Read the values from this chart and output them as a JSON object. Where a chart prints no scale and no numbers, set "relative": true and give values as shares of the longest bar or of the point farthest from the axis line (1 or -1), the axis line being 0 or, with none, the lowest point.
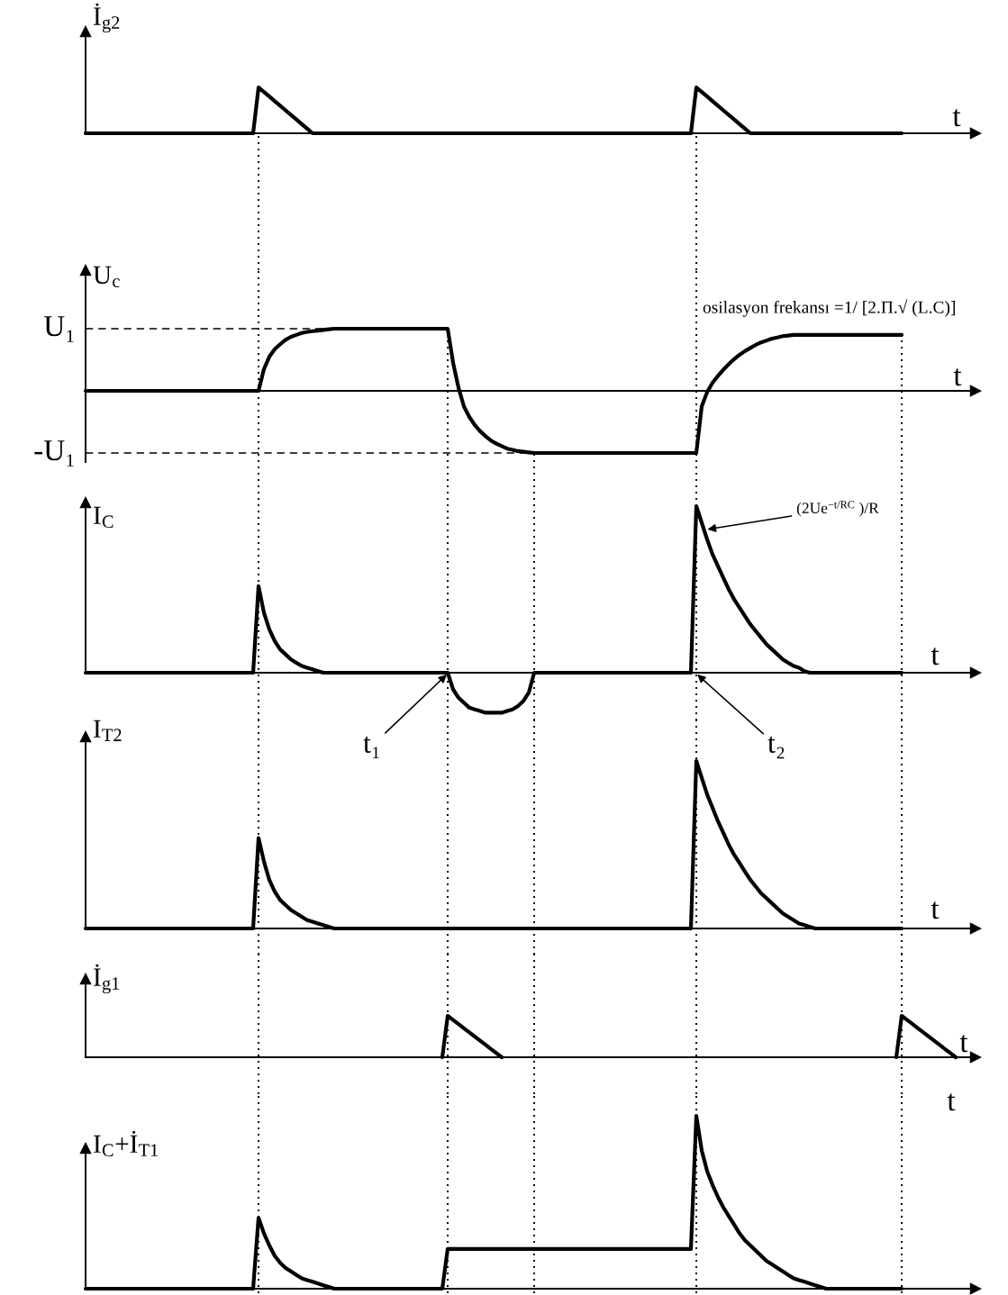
{
  "chart_data": [
    {
      "type": "line",
      "ylabel": "İ$_{g2}$",
      "xlabel": "t",
      "relative": true,
      "color": "#000000",
      "categories": [
        null,
        null,
        null,
        null,
        null,
        null,
        null,
        null,
        null,
        null,
        null,
        null,
        null,
        null,
        null,
        null,
        null,
        null,
        null,
        null,
        null,
        null,
        null,
        null,
        null,
        null,
        null,
        null,
        null,
        null,
        null,
        null,
        null,
        null,
        null,
        null,
        null,
        null,
        null,
        null,
        null,
        null,
        null,
        null,
        null,
        null,
        null,
        null,
        null,
        null,
        null,
        null,
        null,
        null,
        null,
        null,
        null,
        null,
        null,
        null,
        null,
        null,
        null,
        null,
        null,
        null,
        null,
        null,
        null,
        null,
        null,
        null,
        null,
        null,
        null,
        null,
        null,
        null,
        null,
        null,
        null,
        null,
        null,
        null,
        null,
        null,
        null,
        null,
        null,
        null,
        null,
        null,
        null,
        null,
        null,
        null,
        null,
        null,
        null,
        null,
        null,
        null,
        null,
        null,
        null,
        null,
        null,
        null,
        null,
        null,
        null,
        null,
        null,
        null,
        null,
        null,
        null,
        null,
        null,
        null,
        null,
        null,
        null,
        null,
        null,
        null,
        null,
        null,
        null,
        null,
        null,
        null,
        null,
        null,
        null,
        null,
        null,
        null,
        null,
        null,
        null,
        null,
        null,
        null,
        null,
        null,
        null,
        null,
        null,
        null,
        null,
        null,
        null,
        null,
        null,
        null,
        null,
        null,
        null,
        null,
        null,
        null
      ],
      "values": [
        0,
        0,
        0,
        0,
        0,
        0,
        0,
        0,
        0,
        0,
        0,
        0,
        0,
        0,
        0,
        0,
        0,
        0,
        0,
        0,
        0,
        0,
        0,
        0,
        0,
        0,
        0,
        0,
        0,
        0,
        0,
        0,
        1,
        0.9,
        0.8,
        0.7,
        0.6,
        0.5,
        0.4,
        0.3,
        0.2,
        0.1,
        0,
        0,
        0,
        0,
        0,
        0,
        0,
        0,
        0,
        0,
        0,
        0,
        0,
        0,
        0,
        0,
        0,
        0,
        0,
        0,
        0,
        0,
        0,
        0,
        0,
        0,
        0,
        0,
        0,
        0,
        0,
        0,
        0,
        0,
        0,
        0,
        0,
        0,
        0,
        0,
        0,
        0,
        0,
        0,
        0,
        0,
        0,
        0,
        0,
        0,
        0,
        0,
        0,
        0,
        0,
        0,
        0,
        0,
        0,
        0,
        0,
        0,
        0,
        0,
        0,
        0,
        0,
        0,
        0,
        0,
        0,
        1,
        0.9,
        0.8,
        0.7,
        0.6,
        0.5,
        0.4,
        0.3,
        0.2,
        0.1,
        0,
        0,
        0,
        0,
        0,
        0,
        0,
        0,
        0,
        0,
        0,
        0,
        0,
        0,
        0,
        0,
        0,
        0,
        0,
        0,
        0,
        0,
        0,
        0,
        0,
        0,
        0,
        0,
        0,
        null,
        null,
        null,
        null,
        null,
        null,
        null,
        null,
        null,
        null
      ]
    },
    {
      "type": "line",
      "ylabel": "U$_{c}$",
      "xlabel": "t",
      "relative": true,
      "color": "#000000",
      "annotations": [
        "osilasyon frekansı =1/ [2.Π.√ (L.C)]"
      ],
      "ref_lines": [
        {
          "axis": "y",
          "value": 1,
          "label": "U₁",
          "line_style": "dashed"
        },
        {
          "axis": "y",
          "value": -1,
          "label": "-U₁",
          "line_style": "dashed"
        }
      ],
      "categories": [
        null,
        null,
        null,
        null,
        null,
        null,
        null,
        null,
        null,
        null,
        null,
        null,
        null,
        null,
        null,
        null,
        null,
        null,
        null,
        null,
        null,
        null,
        null,
        null,
        null,
        null,
        null,
        null,
        null,
        null,
        null,
        null,
        null,
        null,
        null,
        null,
        null,
        null,
        null,
        null,
        null,
        null,
        null,
        null,
        null,
        null,
        null,
        null,
        null,
        null,
        null,
        null,
        null,
        null,
        null,
        null,
        null,
        null,
        null,
        null,
        null,
        null,
        null,
        null,
        null,
        null,
        null,
        null,
        null,
        null,
        null,
        null,
        null,
        null,
        null,
        null,
        null,
        null,
        null,
        null,
        null,
        null,
        null,
        null,
        null,
        null,
        null,
        null,
        null,
        null,
        null,
        null,
        null,
        null,
        null,
        null,
        null,
        null,
        null,
        null,
        null,
        null,
        null,
        null,
        null,
        null,
        null,
        null,
        null,
        null,
        null,
        null,
        null,
        null,
        null,
        null,
        null,
        null,
        null,
        null,
        null,
        null,
        null,
        null,
        null,
        null,
        null,
        null,
        null,
        null,
        null,
        null,
        null,
        null,
        null,
        null,
        null,
        null,
        null,
        null,
        null,
        null,
        null,
        null,
        null,
        null,
        null,
        null,
        null,
        null,
        null,
        null,
        null,
        null,
        null,
        null,
        null,
        null,
        null,
        null,
        null,
        null
      ],
      "values": [
        0,
        0,
        0,
        0,
        0,
        0,
        0,
        0,
        0,
        0,
        0,
        0,
        0,
        0,
        0,
        0,
        0,
        0,
        0,
        0,
        0,
        0,
        0,
        0,
        0,
        0,
        0,
        0,
        0,
        0,
        0,
        0,
        0,
        0.35,
        0.55,
        0.67,
        0.75,
        0.82,
        0.87,
        0.9,
        0.93,
        0.95,
        0.96,
        0.97,
        0.98,
        0.99,
        1,
        1,
        1,
        1,
        1,
        1,
        1,
        1,
        1,
        1,
        1,
        1,
        1,
        1,
        1,
        1,
        1,
        1,
        1,
        1,
        1,
        1,
        0.45,
        0.05,
        -0.25,
        -0.42,
        -0.55,
        -0.65,
        -0.73,
        -0.8,
        -0.85,
        -0.89,
        -0.93,
        -0.95,
        -0.97,
        -0.98,
        -0.99,
        -1,
        -1,
        -1,
        -1,
        -1,
        -1,
        -1,
        -1,
        -1,
        -1,
        -1,
        -1,
        -1,
        -1,
        -1,
        -1,
        -1,
        -1,
        -1,
        -1,
        -1,
        -1,
        -1,
        -1,
        -1,
        -1,
        -1,
        -1,
        -1,
        -1,
        -1,
        -0.25,
        -0.02,
        0.13,
        0.24,
        0.34,
        0.43,
        0.51,
        0.58,
        0.64,
        0.69,
        0.74,
        0.78,
        0.81,
        0.84,
        0.86,
        0.88,
        0.89,
        0.9,
        0.9,
        0.9,
        0.9,
        0.9,
        0.9,
        0.9,
        0.9,
        0.9,
        0.9,
        0.9,
        0.9,
        0.9,
        0.9,
        0.9,
        0.9,
        0.9,
        0.9,
        0.9,
        0.9,
        0.9,
        null,
        null,
        null,
        null,
        null,
        null,
        null,
        null,
        null,
        null
      ]
    },
    {
      "type": "line",
      "ylabel": "I$_{C}$",
      "xlabel": "t",
      "relative": true,
      "color": "#000000",
      "annotations": [
        "(2Ue$^{−t/RC}$ )/R",
        "t₁",
        "t₂"
      ],
      "categories": [
        null,
        null,
        null,
        null,
        null,
        null,
        null,
        null,
        null,
        null,
        null,
        null,
        null,
        null,
        null,
        null,
        null,
        null,
        null,
        null,
        null,
        null,
        null,
        null,
        null,
        null,
        null,
        null,
        null,
        null,
        null,
        null,
        null,
        null,
        null,
        null,
        null,
        null,
        null,
        null,
        null,
        null,
        null,
        null,
        null,
        null,
        null,
        null,
        null,
        null,
        null,
        null,
        null,
        null,
        null,
        null,
        null,
        null,
        null,
        null,
        null,
        null,
        null,
        null,
        null,
        null,
        null,
        null,
        null,
        null,
        null,
        null,
        null,
        null,
        null,
        null,
        null,
        null,
        null,
        null,
        null,
        null,
        null,
        null,
        null,
        null,
        null,
        null,
        null,
        null,
        null,
        null,
        null,
        null,
        null,
        null,
        null,
        null,
        null,
        null,
        null,
        null,
        null,
        null,
        null,
        null,
        null,
        null,
        null,
        null,
        null,
        null,
        null,
        null,
        null,
        null,
        null,
        null,
        null,
        null,
        null,
        null,
        null,
        null,
        null,
        null,
        null,
        null,
        null,
        null,
        null,
        null,
        null,
        null,
        null,
        null,
        null,
        null,
        null,
        null,
        null,
        null,
        null,
        null,
        null,
        null,
        null,
        null,
        null,
        null,
        null,
        null,
        null,
        null,
        null,
        null,
        null,
        null,
        null,
        null,
        null,
        null
      ],
      "values": [
        0,
        0,
        0,
        0,
        0,
        0,
        0,
        0,
        0,
        0,
        0,
        0,
        0,
        0,
        0,
        0,
        0,
        0,
        0,
        0,
        0,
        0,
        0,
        0,
        0,
        0,
        0,
        0,
        0,
        0,
        0,
        0,
        0.52,
        0.36,
        0.26,
        0.19,
        0.14,
        0.11,
        0.08,
        0.06,
        0.04,
        0.03,
        0.02,
        0.01,
        0,
        0,
        0,
        0,
        0,
        0,
        0,
        0,
        0,
        0,
        0,
        0,
        0,
        0,
        0,
        0,
        0,
        0,
        0,
        0,
        0,
        0,
        0,
        0,
        -0.1,
        -0.15,
        -0.18,
        -0.21,
        -0.22,
        -0.23,
        -0.24,
        -0.24,
        -0.24,
        -0.24,
        -0.23,
        -0.22,
        -0.2,
        -0.17,
        -0.12,
        0,
        0,
        0,
        0,
        0,
        0,
        0,
        0,
        0,
        0,
        0,
        0,
        0,
        0,
        0,
        0,
        0,
        0,
        0,
        0,
        0,
        0,
        0,
        0,
        0,
        0,
        0,
        0,
        0,
        0,
        1,
        0.9,
        0.8,
        0.71,
        0.64,
        0.57,
        0.5,
        0.44,
        0.39,
        0.34,
        0.29,
        0.25,
        0.21,
        0.17,
        0.14,
        0.11,
        0.08,
        0.06,
        0.04,
        0.03,
        0.01,
        0,
        0,
        0,
        0,
        0,
        0,
        0,
        0,
        0,
        0,
        0,
        0,
        0,
        0,
        0,
        0,
        0,
        0,
        null,
        null,
        null,
        null,
        null,
        null,
        null,
        null,
        null,
        null
      ]
    },
    {
      "type": "line",
      "ylabel": "I$_{T2}$",
      "xlabel": "t",
      "relative": true,
      "color": "#000000",
      "categories": [
        null,
        null,
        null,
        null,
        null,
        null,
        null,
        null,
        null,
        null,
        null,
        null,
        null,
        null,
        null,
        null,
        null,
        null,
        null,
        null,
        null,
        null,
        null,
        null,
        null,
        null,
        null,
        null,
        null,
        null,
        null,
        null,
        null,
        null,
        null,
        null,
        null,
        null,
        null,
        null,
        null,
        null,
        null,
        null,
        null,
        null,
        null,
        null,
        null,
        null,
        null,
        null,
        null,
        null,
        null,
        null,
        null,
        null,
        null,
        null,
        null,
        null,
        null,
        null,
        null,
        null,
        null,
        null,
        null,
        null,
        null,
        null,
        null,
        null,
        null,
        null,
        null,
        null,
        null,
        null,
        null,
        null,
        null,
        null,
        null,
        null,
        null,
        null,
        null,
        null,
        null,
        null,
        null,
        null,
        null,
        null,
        null,
        null,
        null,
        null,
        null,
        null,
        null,
        null,
        null,
        null,
        null,
        null,
        null,
        null,
        null,
        null,
        null,
        null,
        null,
        null,
        null,
        null,
        null,
        null,
        null,
        null,
        null,
        null,
        null,
        null,
        null,
        null,
        null,
        null,
        null,
        null,
        null,
        null,
        null,
        null,
        null,
        null,
        null,
        null,
        null,
        null,
        null,
        null,
        null,
        null,
        null,
        null,
        null,
        null,
        null,
        null,
        null,
        null,
        null,
        null,
        null,
        null,
        null,
        null,
        null,
        null
      ],
      "values": [
        0,
        0,
        0,
        0,
        0,
        0,
        0,
        0,
        0,
        0,
        0,
        0,
        0,
        0,
        0,
        0,
        0,
        0,
        0,
        0,
        0,
        0,
        0,
        0,
        0,
        0,
        0,
        0,
        0,
        0,
        0,
        0,
        0.54,
        0.4,
        0.29,
        0.22,
        0.17,
        0.14,
        0.11,
        0.09,
        0.07,
        0.05,
        0.04,
        0.03,
        0.02,
        0.01,
        0,
        0,
        0,
        0,
        0,
        0,
        0,
        0,
        0,
        0,
        0,
        0,
        0,
        0,
        0,
        0,
        0,
        0,
        0,
        0,
        0,
        0,
        0,
        0,
        0,
        0,
        0,
        0,
        0,
        0,
        0,
        0,
        0,
        0,
        0,
        0,
        0,
        0,
        0,
        0,
        0,
        0,
        0,
        0,
        0,
        0,
        0,
        0,
        0,
        0,
        0,
        0,
        0,
        0,
        0,
        0,
        0,
        0,
        0,
        0,
        0,
        0,
        0,
        0,
        0,
        0,
        0,
        1,
        0.9,
        0.8,
        0.72,
        0.64,
        0.57,
        0.5,
        0.44,
        0.39,
        0.34,
        0.29,
        0.25,
        0.21,
        0.18,
        0.15,
        0.12,
        0.09,
        0.07,
        0.05,
        0.03,
        0.02,
        0.01,
        0,
        0,
        0,
        0,
        0,
        0,
        0,
        0,
        0,
        0,
        0,
        0,
        0,
        0,
        0,
        0,
        0,
        null,
        null,
        null,
        null,
        null,
        null,
        null,
        null,
        null,
        null
      ]
    },
    {
      "type": "line",
      "ylabel": "İ$_{g1}$",
      "xlabel": "t",
      "relative": true,
      "color": "#000000",
      "categories": [
        null,
        null,
        null,
        null,
        null,
        null,
        null,
        null,
        null,
        null,
        null,
        null,
        null,
        null,
        null,
        null,
        null,
        null,
        null,
        null,
        null,
        null,
        null,
        null,
        null,
        null,
        null,
        null,
        null,
        null,
        null,
        null,
        null,
        null,
        null,
        null,
        null,
        null,
        null,
        null,
        null,
        null,
        null,
        null,
        null,
        null,
        null,
        null,
        null,
        null,
        null,
        null,
        null,
        null,
        null,
        null,
        null,
        null,
        null,
        null,
        null,
        null,
        null,
        null,
        null,
        null,
        null,
        null,
        null,
        null,
        null,
        null,
        null,
        null,
        null,
        null,
        null,
        null,
        null,
        null,
        null,
        null,
        null,
        null,
        null,
        null,
        null,
        null,
        null,
        null,
        null,
        null,
        null,
        null,
        null,
        null,
        null,
        null,
        null,
        null,
        null,
        null,
        null,
        null,
        null,
        null,
        null,
        null,
        null,
        null,
        null,
        null,
        null,
        null,
        null,
        null,
        null,
        null,
        null,
        null,
        null,
        null,
        null,
        null,
        null,
        null,
        null,
        null,
        null,
        null,
        null,
        null,
        null,
        null,
        null,
        null,
        null,
        null,
        null,
        null,
        null,
        null,
        null,
        null,
        null,
        null,
        null,
        null,
        null,
        null,
        null,
        null,
        null,
        null,
        null,
        null,
        null,
        null,
        null,
        null,
        null,
        null
      ],
      "values": [
        null,
        null,
        null,
        null,
        null,
        null,
        null,
        null,
        null,
        null,
        null,
        null,
        null,
        null,
        null,
        null,
        null,
        null,
        null,
        null,
        null,
        null,
        null,
        null,
        null,
        null,
        null,
        null,
        null,
        null,
        null,
        null,
        null,
        null,
        null,
        null,
        null,
        null,
        null,
        null,
        null,
        null,
        null,
        null,
        null,
        null,
        null,
        null,
        null,
        null,
        null,
        null,
        null,
        null,
        null,
        null,
        null,
        null,
        null,
        null,
        null,
        null,
        null,
        null,
        null,
        null,
        0,
        1,
        0.9,
        0.8,
        0.7,
        0.6,
        0.5,
        0.4,
        0.3,
        0.2,
        0.1,
        0,
        null,
        null,
        null,
        null,
        null,
        null,
        null,
        null,
        null,
        null,
        null,
        null,
        null,
        null,
        null,
        null,
        null,
        null,
        null,
        null,
        null,
        null,
        null,
        null,
        null,
        null,
        null,
        null,
        null,
        null,
        null,
        null,
        null,
        null,
        null,
        null,
        null,
        null,
        null,
        null,
        null,
        null,
        null,
        null,
        null,
        null,
        null,
        null,
        null,
        null,
        null,
        null,
        null,
        null,
        null,
        null,
        null,
        null,
        null,
        null,
        null,
        null,
        null,
        null,
        null,
        null,
        null,
        null,
        null,
        null,
        null,
        null,
        0,
        1,
        0.9,
        0.8,
        0.7,
        0.6,
        0.5,
        0.4,
        0.3,
        0.2,
        0.1,
        0
      ]
    },
    {
      "type": "line",
      "ylabel": "I$_{C}$+İ$_{T1}$",
      "xlabel": "t",
      "relative": true,
      "color": "#000000",
      "categories": [
        null,
        null,
        null,
        null,
        null,
        null,
        null,
        null,
        null,
        null,
        null,
        null,
        null,
        null,
        null,
        null,
        null,
        null,
        null,
        null,
        null,
        null,
        null,
        null,
        null,
        null,
        null,
        null,
        null,
        null,
        null,
        null,
        null,
        null,
        null,
        null,
        null,
        null,
        null,
        null,
        null,
        null,
        null,
        null,
        null,
        null,
        null,
        null,
        null,
        null,
        null,
        null,
        null,
        null,
        null,
        null,
        null,
        null,
        null,
        null,
        null,
        null,
        null,
        null,
        null,
        null,
        null,
        null,
        null,
        null,
        null,
        null,
        null,
        null,
        null,
        null,
        null,
        null,
        null,
        null,
        null,
        null,
        null,
        null,
        null,
        null,
        null,
        null,
        null,
        null,
        null,
        null,
        null,
        null,
        null,
        null,
        null,
        null,
        null,
        null,
        null,
        null,
        null,
        null,
        null,
        null,
        null,
        null,
        null,
        null,
        null,
        null,
        null,
        null,
        null,
        null,
        null,
        null,
        null,
        null,
        null,
        null,
        null,
        null,
        null,
        null,
        null,
        null,
        null,
        null,
        null,
        null,
        null,
        null,
        null,
        null,
        null,
        null,
        null,
        null,
        null,
        null,
        null,
        null,
        null,
        null,
        null,
        null,
        null,
        null,
        null,
        null,
        null,
        null,
        null,
        null,
        null,
        null,
        null,
        null,
        null,
        null
      ],
      "values": [
        0,
        0,
        0,
        0,
        0,
        0,
        0,
        0,
        0,
        0,
        0,
        0,
        0,
        0,
        0,
        0,
        0,
        0,
        0,
        0,
        0,
        0,
        0,
        0,
        0,
        0,
        0,
        0,
        0,
        0,
        0,
        0,
        0.41,
        0.32,
        0.25,
        0.19,
        0.15,
        0.12,
        0.1,
        0.08,
        0.06,
        0.05,
        0.04,
        0.03,
        0.02,
        0.01,
        0,
        0,
        0,
        0,
        0,
        0,
        0,
        0,
        0,
        0,
        0,
        0,
        0,
        0,
        0,
        0,
        0,
        0,
        0,
        0,
        0,
        0.23,
        0.23,
        0.23,
        0.23,
        0.23,
        0.23,
        0.23,
        0.23,
        0.23,
        0.23,
        0.23,
        0.23,
        0.23,
        0.23,
        0.23,
        0.23,
        0.23,
        0.23,
        0.23,
        0.23,
        0.23,
        0.23,
        0.23,
        0.23,
        0.23,
        0.23,
        0.23,
        0.23,
        0.23,
        0.23,
        0.23,
        0.23,
        0.23,
        0.23,
        0.23,
        0.23,
        0.23,
        0.23,
        0.23,
        0.23,
        0.23,
        0.23,
        0.23,
        0.23,
        0.23,
        0.23,
        1,
        0.8,
        0.68,
        0.6,
        0.53,
        0.47,
        0.42,
        0.37,
        0.32,
        0.28,
        0.25,
        0.22,
        0.19,
        0.16,
        0.14,
        0.12,
        0.1,
        0.08,
        0.06,
        0.05,
        0.04,
        0.03,
        0.02,
        0.01,
        0,
        0,
        0,
        0,
        0,
        0,
        0,
        0,
        0,
        0,
        0,
        0,
        0,
        0,
        0,
        null,
        null,
        null,
        null,
        null,
        null,
        null,
        null,
        null,
        null
      ]
    }
  ]
}
